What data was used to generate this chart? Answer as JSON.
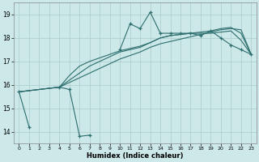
{
  "title": "",
  "xlabel": "Humidex (Indice chaleur)",
  "background_color": "#cce8e8",
  "grid_color": "#aacccc",
  "line_color": "#2d6e6e",
  "xlim": [
    -0.5,
    23.5
  ],
  "ylim": [
    13.5,
    19.5
  ],
  "xticks": [
    0,
    1,
    2,
    3,
    4,
    5,
    6,
    7,
    8,
    9,
    10,
    11,
    12,
    13,
    14,
    15,
    16,
    17,
    18,
    19,
    20,
    21,
    22,
    23
  ],
  "yticks": [
    14,
    15,
    16,
    17,
    18,
    19
  ],
  "series_jagged": {
    "segments": [
      {
        "x": [
          0,
          1
        ],
        "y": [
          15.7,
          14.2
        ]
      },
      {
        "x": [
          4,
          5,
          6,
          7
        ],
        "y": [
          15.9,
          15.8,
          13.8,
          13.85
        ]
      },
      {
        "x": [
          10,
          11,
          12,
          13,
          14,
          15,
          16,
          17,
          18,
          19,
          20,
          21,
          22,
          23
        ],
        "y": [
          17.5,
          18.6,
          18.4,
          19.1,
          18.2,
          18.2,
          18.2,
          18.2,
          18.1,
          18.3,
          18.0,
          17.7,
          17.5,
          17.3
        ]
      }
    ]
  },
  "series_smooth": [
    {
      "x": [
        0,
        4,
        5,
        6,
        7,
        8,
        9,
        10,
        11,
        12,
        13,
        14,
        15,
        16,
        17,
        18,
        19,
        20,
        21,
        22,
        23
      ],
      "y": [
        15.7,
        15.9,
        16.1,
        16.3,
        16.5,
        16.7,
        16.9,
        17.1,
        17.25,
        17.4,
        17.6,
        17.75,
        17.85,
        17.95,
        18.05,
        18.15,
        18.25,
        18.35,
        18.4,
        18.35,
        17.3
      ]
    },
    {
      "x": [
        0,
        4,
        5,
        6,
        7,
        8,
        9,
        10,
        11,
        12,
        13,
        14,
        15,
        16,
        17,
        18,
        19,
        20,
        21,
        22,
        23
      ],
      "y": [
        15.7,
        15.9,
        16.2,
        16.5,
        16.8,
        17.0,
        17.2,
        17.4,
        17.5,
        17.6,
        17.8,
        18.0,
        18.1,
        18.15,
        18.2,
        18.25,
        18.3,
        18.4,
        18.45,
        18.2,
        17.3
      ]
    },
    {
      "x": [
        0,
        4,
        5,
        6,
        7,
        8,
        9,
        10,
        11,
        12,
        13,
        14,
        15,
        16,
        17,
        18,
        19,
        20,
        21,
        22,
        23
      ],
      "y": [
        15.7,
        15.9,
        16.4,
        16.8,
        17.0,
        17.15,
        17.3,
        17.45,
        17.55,
        17.65,
        17.8,
        18.0,
        18.1,
        18.15,
        18.2,
        18.2,
        18.2,
        18.25,
        18.3,
        17.9,
        17.3
      ]
    }
  ]
}
